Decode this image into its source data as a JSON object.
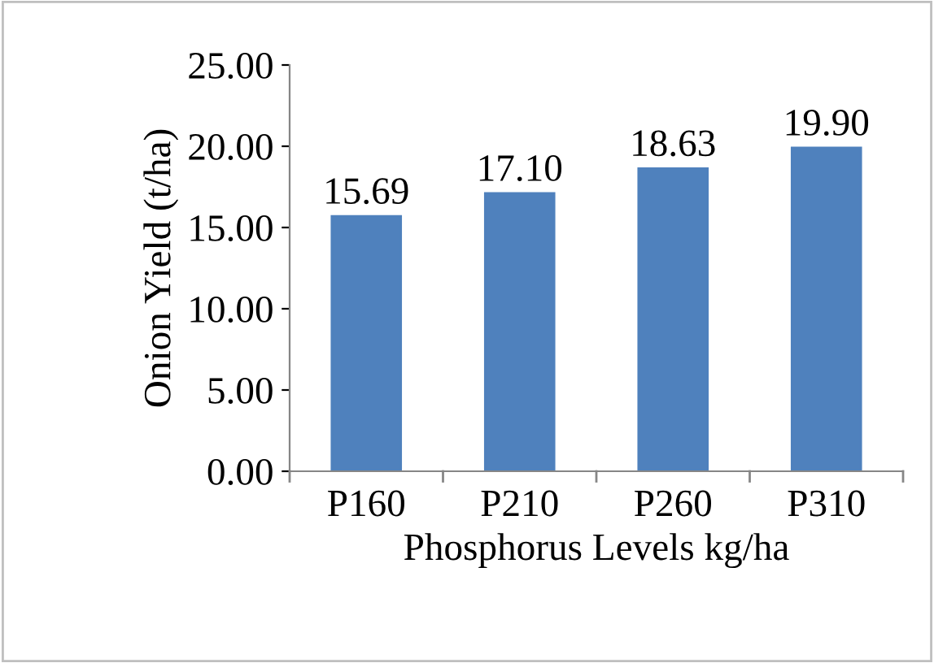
{
  "chart_data": {
    "type": "bar",
    "xlabel": "Phosphorus Levels kg/ha",
    "ylabel": "Onion Yield (t/ha)",
    "categories": [
      "P160",
      "P210",
      "P260",
      "P310"
    ],
    "values": [
      15.69,
      17.1,
      18.63,
      19.9
    ],
    "value_labels": [
      "15.69",
      "17.10",
      "18.63",
      "19.90"
    ],
    "color": "#4f81bd",
    "ylim": [
      0,
      25
    ],
    "yticks": [
      {
        "value": 0,
        "label": "0.00"
      },
      {
        "value": 5,
        "label": "5.00"
      },
      {
        "value": 10,
        "label": "10.00"
      },
      {
        "value": 15,
        "label": "15.00"
      },
      {
        "value": 20,
        "label": "20.00"
      },
      {
        "value": 25,
        "label": "25.00"
      }
    ],
    "grid": false,
    "legend": false
  }
}
